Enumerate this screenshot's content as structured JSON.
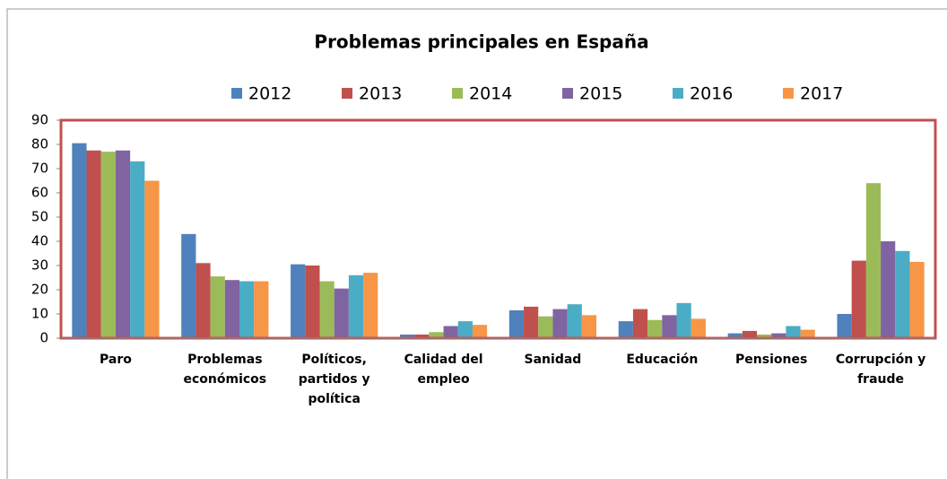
{
  "chart_data": {
    "type": "bar",
    "title": "Problemas principales en España",
    "categories": [
      "Paro",
      "Problemas económicos",
      "Políticos, partidos y política",
      "Calidad del empleo",
      "Sanidad",
      "Educación",
      "Pensiones",
      "Corrupción y fraude"
    ],
    "series": [
      {
        "name": "2012",
        "color": "#4f81bd",
        "values": [
          80.5,
          43,
          30.5,
          1.5,
          11.5,
          7,
          2,
          10
        ]
      },
      {
        "name": "2013",
        "color": "#c0504d",
        "values": [
          77.5,
          31,
          30,
          1.5,
          13,
          12,
          3,
          32
        ]
      },
      {
        "name": "2014",
        "color": "#9bbb59",
        "values": [
          77,
          25.5,
          23.5,
          2.5,
          9,
          7.5,
          1.5,
          64
        ]
      },
      {
        "name": "2015",
        "color": "#8064a2",
        "values": [
          77.5,
          24,
          20.5,
          5,
          12,
          9.5,
          2,
          40
        ]
      },
      {
        "name": "2016",
        "color": "#4bacc6",
        "values": [
          73,
          23.5,
          26,
          7,
          14,
          14.5,
          5,
          36
        ]
      },
      {
        "name": "2017",
        "color": "#f79646",
        "values": [
          65,
          23.5,
          27,
          5.5,
          9.5,
          8,
          3.5,
          31.5
        ]
      }
    ],
    "ylim": [
      0,
      90
    ],
    "yticks": [
      0,
      10,
      20,
      30,
      40,
      50,
      60,
      70,
      80,
      90
    ],
    "legend": "top"
  }
}
